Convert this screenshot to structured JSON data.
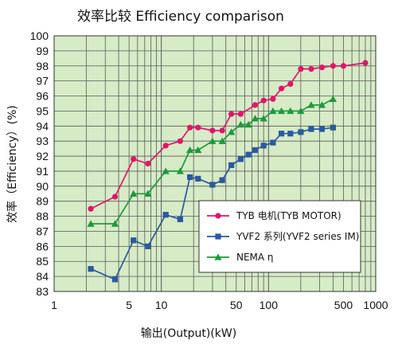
{
  "chart_data": {
    "type": "line",
    "title": "效率比较    Efficiency comparison",
    "xlabel": "输出(Output)(kW)",
    "ylabel": "效率（Efficiency）(%)",
    "x_scale": "log",
    "xlim": [
      1,
      1000
    ],
    "ylim": [
      83,
      100
    ],
    "x_ticks": [
      1,
      5,
      10,
      50,
      100,
      500,
      1000
    ],
    "x_tick_labels": [
      "1",
      "5",
      "10",
      "50",
      "100",
      "500",
      "1000"
    ],
    "y_ticks": [
      83,
      84,
      85,
      86,
      87,
      88,
      89,
      90,
      91,
      92,
      93,
      94,
      95,
      96,
      97,
      98,
      99,
      100
    ],
    "y_tick_labels": [
      "83",
      "84",
      "85",
      "86",
      "87",
      "88",
      "89",
      "90",
      "91",
      "92",
      "93",
      "94",
      "95",
      "96",
      "97",
      "98",
      "99",
      "100"
    ],
    "grid": true,
    "plot_background": "#d6ebc6",
    "grid_color": "#5a5a5a",
    "legend_position": "lower-right",
    "series": [
      {
        "name": "TYB 电机(TYB MOTOR)",
        "color": "#e0156b",
        "marker": "circle",
        "x": [
          2.2,
          3.7,
          5.5,
          7.5,
          11,
          15,
          18.5,
          22,
          30,
          37,
          45,
          55,
          75,
          90,
          110,
          132,
          160,
          200,
          250,
          315,
          400,
          500,
          800
        ],
        "y": [
          88.5,
          89.3,
          91.8,
          91.5,
          92.7,
          93.0,
          93.9,
          93.9,
          93.7,
          93.7,
          94.8,
          94.8,
          95.4,
          95.7,
          95.8,
          96.5,
          96.8,
          97.8,
          97.8,
          97.9,
          98.0,
          98.0,
          98.2
        ]
      },
      {
        "name": "YVF2 系列(YVF2 series IM)",
        "color": "#2a5aa0",
        "marker": "square",
        "x": [
          2.2,
          3.7,
          5.5,
          7.5,
          11,
          15,
          18.5,
          22,
          30,
          37,
          45,
          55,
          65,
          75,
          90,
          110,
          132,
          160,
          200,
          250,
          315,
          400
        ],
        "y": [
          84.5,
          83.8,
          86.4,
          86.0,
          88.1,
          87.8,
          90.6,
          90.5,
          90.1,
          90.4,
          91.4,
          91.8,
          92.1,
          92.4,
          92.7,
          92.9,
          93.5,
          93.5,
          93.6,
          93.8,
          93.8,
          93.9
        ]
      },
      {
        "name": "NEMA   η",
        "color": "#1c9a3c",
        "marker": "triangle",
        "x": [
          2.2,
          3.7,
          5.5,
          7.5,
          11,
          15,
          18.5,
          22,
          30,
          37,
          45,
          55,
          65,
          75,
          90,
          110,
          132,
          160,
          200,
          250,
          315,
          400
        ],
        "y": [
          87.5,
          87.5,
          89.5,
          89.5,
          91.0,
          91.0,
          92.4,
          92.4,
          93.0,
          93.0,
          93.6,
          94.1,
          94.1,
          94.5,
          94.5,
          95.0,
          95.0,
          95.0,
          95.0,
          95.4,
          95.4,
          95.8
        ]
      }
    ]
  }
}
